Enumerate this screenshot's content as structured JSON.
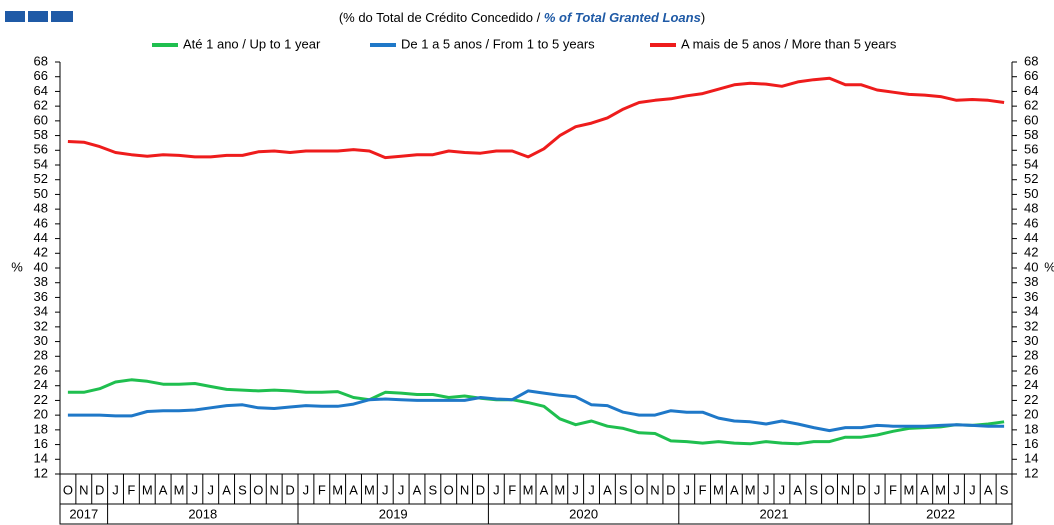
{
  "chart_data": {
    "type": "line",
    "title_parts": [
      "(% do Total de Crédito Concedido / ",
      "% of Total Granted Loans",
      ")"
    ],
    "y_axis_label": "%",
    "y2_axis_label": "%",
    "categories": [
      "O",
      "N",
      "D",
      "J",
      "F",
      "M",
      "A",
      "M",
      "J",
      "J",
      "A",
      "S",
      "O",
      "N",
      "D",
      "J",
      "F",
      "M",
      "A",
      "M",
      "J",
      "J",
      "A",
      "S",
      "O",
      "N",
      "D",
      "J",
      "F",
      "M",
      "A",
      "M",
      "J",
      "J",
      "A",
      "S",
      "O",
      "N",
      "D",
      "J",
      "F",
      "M",
      "A",
      "M",
      "J",
      "J",
      "A",
      "S",
      "O",
      "N",
      "D",
      "J",
      "F",
      "M",
      "A",
      "M",
      "J",
      "J",
      "A",
      "S"
    ],
    "year_groups": [
      {
        "label": "2017",
        "months": 3
      },
      {
        "label": "2018",
        "months": 12
      },
      {
        "label": "2019",
        "months": 12
      },
      {
        "label": "2020",
        "months": 12
      },
      {
        "label": "2021",
        "months": 12
      },
      {
        "label": "2022",
        "months": 9
      }
    ],
    "series": [
      {
        "name": "Até 1 ano / Up to 1 year",
        "color": "#1fbf4f",
        "values": [
          23.1,
          23.1,
          23.6,
          24.5,
          24.8,
          24.6,
          24.2,
          24.2,
          24.3,
          23.9,
          23.5,
          23.4,
          23.3,
          23.4,
          23.3,
          23.1,
          23.1,
          23.2,
          22.4,
          22.1,
          23.1,
          23.0,
          22.8,
          22.8,
          22.4,
          22.6,
          22.3,
          22.1,
          22.1,
          21.7,
          21.2,
          19.5,
          18.7,
          19.2,
          18.5,
          18.2,
          17.6,
          17.5,
          16.5,
          16.4,
          16.2,
          16.4,
          16.2,
          16.1,
          16.4,
          16.2,
          16.1,
          16.4,
          16.4,
          17.0,
          17.0,
          17.3,
          17.8,
          18.2,
          18.3,
          18.4,
          18.7,
          18.6,
          18.8,
          19.1
        ]
      },
      {
        "name": "De 1 a 5 anos / From 1 to 5 years",
        "color": "#1f78c8",
        "values": [
          20.0,
          20.0,
          20.0,
          19.9,
          19.9,
          20.5,
          20.6,
          20.6,
          20.7,
          21.0,
          21.3,
          21.4,
          21.0,
          20.9,
          21.1,
          21.3,
          21.2,
          21.2,
          21.5,
          22.1,
          22.2,
          22.1,
          22.0,
          22.0,
          22.0,
          22.0,
          22.4,
          22.2,
          22.1,
          23.3,
          23.0,
          22.7,
          22.5,
          21.4,
          21.3,
          20.4,
          20.0,
          20.0,
          20.6,
          20.4,
          20.4,
          19.6,
          19.2,
          19.1,
          18.8,
          19.2,
          18.8,
          18.3,
          17.9,
          18.3,
          18.3,
          18.6,
          18.5,
          18.5,
          18.5,
          18.6,
          18.7,
          18.6,
          18.5,
          18.5
        ]
      },
      {
        "name": "A mais de 5 anos / More than 5 years",
        "color": "#ee1c1c",
        "values": [
          57.2,
          57.1,
          56.5,
          55.7,
          55.4,
          55.2,
          55.4,
          55.3,
          55.1,
          55.1,
          55.3,
          55.3,
          55.8,
          55.9,
          55.7,
          55.9,
          55.9,
          55.9,
          56.1,
          55.9,
          55.0,
          55.2,
          55.4,
          55.4,
          55.9,
          55.7,
          55.6,
          55.9,
          55.9,
          55.1,
          56.2,
          58.0,
          59.2,
          59.7,
          60.4,
          61.6,
          62.5,
          62.8,
          63.0,
          63.4,
          63.7,
          64.3,
          64.9,
          65.1,
          65.0,
          64.7,
          65.3,
          65.6,
          65.8,
          64.9,
          64.9,
          64.2,
          63.9,
          63.6,
          63.5,
          63.3,
          62.8,
          62.9,
          62.8,
          62.5
        ]
      }
    ],
    "ylim": [
      12,
      68
    ],
    "yticks": [
      12,
      14,
      16,
      18,
      20,
      22,
      24,
      26,
      28,
      30,
      32,
      34,
      36,
      38,
      40,
      42,
      44,
      46,
      48,
      50,
      52,
      54,
      56,
      58,
      60,
      62,
      64,
      66,
      68
    ],
    "y2lim": [
      12,
      68
    ],
    "y2ticks": [
      12,
      14,
      16,
      18,
      20,
      22,
      24,
      26,
      28,
      30,
      32,
      34,
      36,
      38,
      40,
      42,
      44,
      46,
      48,
      50,
      52,
      54,
      56,
      58,
      60,
      62,
      64,
      66,
      68
    ],
    "legend": "top"
  }
}
